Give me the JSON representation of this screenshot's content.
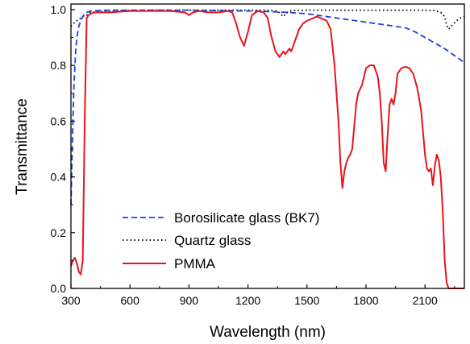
{
  "chart_data": {
    "type": "line",
    "title": "",
    "xlabel": "Wavelength (nm)",
    "ylabel": "Transmittance",
    "xlim": [
      300,
      2300
    ],
    "ylim": [
      0.0,
      1.02
    ],
    "x_ticks": [
      300,
      600,
      900,
      1200,
      1500,
      1800,
      2100
    ],
    "y_ticks": [
      0.0,
      0.2,
      0.4,
      0.6,
      0.8,
      1.0
    ],
    "x_tick_labels": [
      "300",
      "600",
      "900",
      "1200",
      "1500",
      "1800",
      "2100"
    ],
    "y_tick_labels": [
      "0.0",
      "0.2",
      "0.4",
      "0.6",
      "0.8",
      "1.0"
    ],
    "grid": false,
    "legend_position": "bottom-left",
    "series": [
      {
        "name": "Borosilicate glass (BK7)",
        "color": "#1f3fe0",
        "style": "dashed",
        "x": [
          300,
          305,
          310,
          315,
          320,
          325,
          330,
          340,
          350,
          360,
          370,
          380,
          400,
          450,
          500,
          600,
          700,
          800,
          900,
          1000,
          1100,
          1200,
          1300,
          1400,
          1500,
          1600,
          1700,
          1800,
          1900,
          1950,
          2000,
          2050,
          2100,
          2150,
          2200,
          2250,
          2300
        ],
        "y": [
          0.3,
          0.45,
          0.6,
          0.72,
          0.8,
          0.86,
          0.9,
          0.94,
          0.96,
          0.975,
          0.985,
          0.99,
          0.995,
          0.997,
          0.998,
          0.998,
          0.998,
          0.998,
          0.998,
          0.997,
          0.996,
          0.995,
          0.993,
          0.99,
          0.985,
          0.975,
          0.965,
          0.955,
          0.945,
          0.94,
          0.935,
          0.92,
          0.9,
          0.88,
          0.86,
          0.835,
          0.81
        ]
      },
      {
        "name": "Quartz glass",
        "color": "#000000",
        "style": "dotted",
        "x": [
          300,
          320,
          340,
          360,
          380,
          400,
          500,
          600,
          700,
          800,
          900,
          1000,
          1100,
          1200,
          1300,
          1350,
          1380,
          1400,
          1420,
          1500,
          1600,
          1700,
          1800,
          1900,
          2000,
          2100,
          2150,
          2180,
          2200,
          2210,
          2220,
          2240,
          2260,
          2280,
          2300
        ],
        "y": [
          0.94,
          0.955,
          0.965,
          0.975,
          0.98,
          0.99,
          0.995,
          0.997,
          0.998,
          0.998,
          0.998,
          0.998,
          0.998,
          0.998,
          0.998,
          0.995,
          0.975,
          0.99,
          0.996,
          0.998,
          0.998,
          0.998,
          0.998,
          0.998,
          0.998,
          0.998,
          0.997,
          0.99,
          0.975,
          0.945,
          0.93,
          0.945,
          0.96,
          0.97,
          0.975
        ]
      },
      {
        "name": "PMMA",
        "color": "#e8141c",
        "style": "solid",
        "x": [
          300,
          310,
          320,
          330,
          340,
          350,
          360,
          370,
          380,
          390,
          400,
          420,
          450,
          500,
          600,
          700,
          800,
          880,
          900,
          920,
          950,
          1000,
          1050,
          1100,
          1120,
          1140,
          1160,
          1180,
          1200,
          1220,
          1250,
          1280,
          1300,
          1320,
          1340,
          1360,
          1370,
          1380,
          1390,
          1400,
          1410,
          1420,
          1440,
          1460,
          1480,
          1500,
          1550,
          1600,
          1620,
          1640,
          1660,
          1670,
          1680,
          1690,
          1700,
          1710,
          1720,
          1730,
          1740,
          1750,
          1760,
          1780,
          1800,
          1820,
          1840,
          1860,
          1870,
          1880,
          1890,
          1900,
          1910,
          1920,
          1930,
          1940,
          1950,
          1960,
          1980,
          2000,
          2020,
          2040,
          2060,
          2080,
          2090,
          2100,
          2110,
          2120,
          2130,
          2140,
          2150,
          2160,
          2170,
          2180,
          2190,
          2200,
          2210,
          2220,
          2230,
          2240,
          2260,
          2280,
          2300
        ],
        "y": [
          0.08,
          0.1,
          0.11,
          0.09,
          0.06,
          0.05,
          0.1,
          0.6,
          0.97,
          0.98,
          0.985,
          0.99,
          0.99,
          0.99,
          0.995,
          0.995,
          0.995,
          0.99,
          0.98,
          0.99,
          0.995,
          0.99,
          0.99,
          0.995,
          0.99,
          0.95,
          0.9,
          0.87,
          0.92,
          0.98,
          0.995,
          0.99,
          0.97,
          0.9,
          0.85,
          0.83,
          0.84,
          0.85,
          0.84,
          0.85,
          0.86,
          0.85,
          0.89,
          0.93,
          0.95,
          0.96,
          0.975,
          0.96,
          0.93,
          0.8,
          0.6,
          0.45,
          0.36,
          0.42,
          0.45,
          0.47,
          0.48,
          0.5,
          0.58,
          0.66,
          0.7,
          0.73,
          0.79,
          0.8,
          0.8,
          0.76,
          0.7,
          0.6,
          0.45,
          0.42,
          0.55,
          0.66,
          0.68,
          0.66,
          0.7,
          0.77,
          0.79,
          0.795,
          0.79,
          0.77,
          0.72,
          0.64,
          0.56,
          0.48,
          0.43,
          0.42,
          0.43,
          0.37,
          0.44,
          0.48,
          0.46,
          0.4,
          0.28,
          0.1,
          0.02,
          0.0,
          0.0,
          0.0,
          0.0,
          0.0,
          0.0
        ]
      }
    ]
  }
}
